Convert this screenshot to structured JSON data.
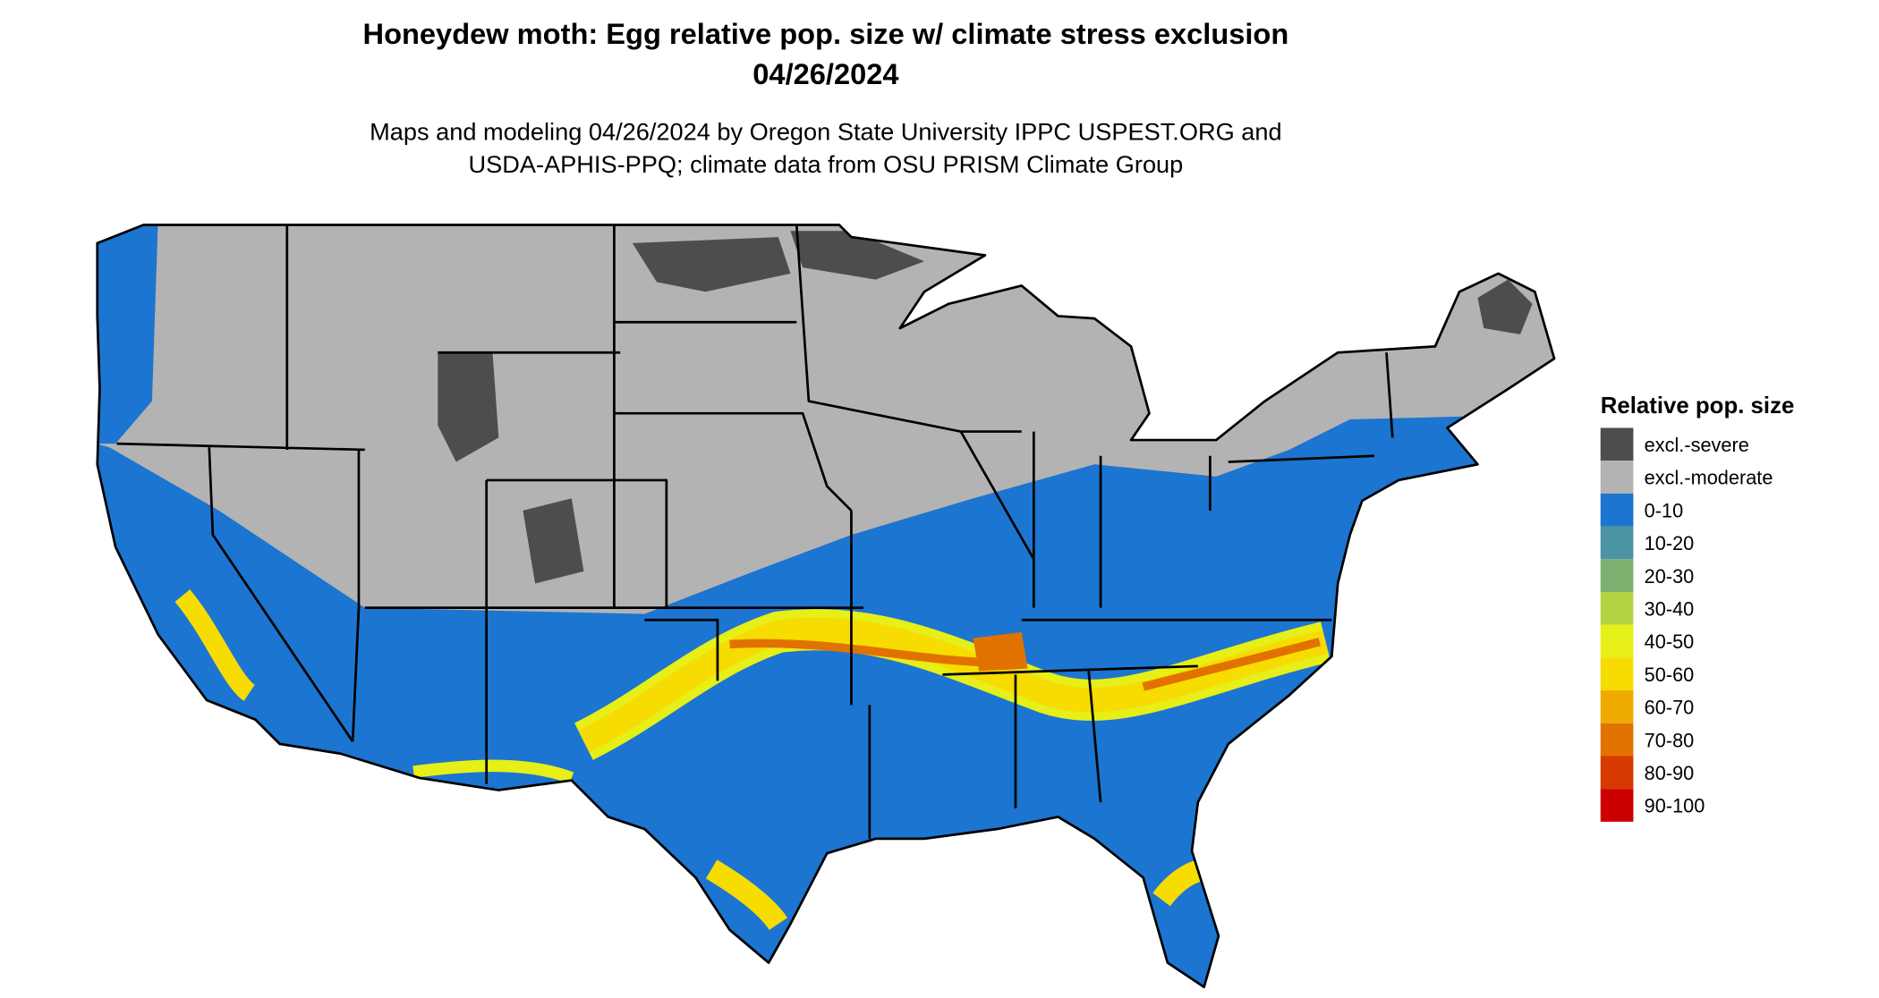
{
  "title": "Honeydew moth: Egg relative pop. size w/ climate stress exclusion",
  "date": "04/26/2024",
  "subtitle": [
    "Maps and modeling 04/26/2024 by Oregon State University IPPC USPEST.ORG and",
    "USDA-APHIS-PPQ; climate data from OSU PRISM Climate Group"
  ],
  "legend": {
    "title": "Relative pop. size",
    "items": [
      {
        "label": "excl.-severe",
        "color": "#4d4d4d"
      },
      {
        "label": "excl.-moderate",
        "color": "#b3b3b3"
      },
      {
        "label": "0-10",
        "color": "#1c75d0"
      },
      {
        "label": "10-20",
        "color": "#4a94a3"
      },
      {
        "label": "20-30",
        "color": "#7bb06e"
      },
      {
        "label": "30-40",
        "color": "#b4d341"
      },
      {
        "label": "40-50",
        "color": "#e6ef17"
      },
      {
        "label": "50-60",
        "color": "#f6dc00"
      },
      {
        "label": "60-70",
        "color": "#efaa00"
      },
      {
        "label": "70-80",
        "color": "#e27200"
      },
      {
        "label": "80-90",
        "color": "#d63a00"
      },
      {
        "label": "90-100",
        "color": "#cc0000"
      }
    ]
  }
}
